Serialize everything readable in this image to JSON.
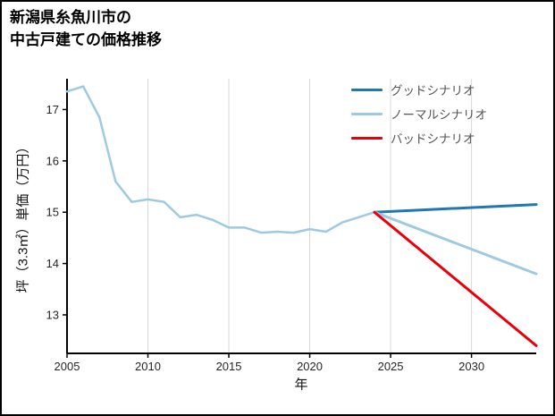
{
  "title": {
    "line1": "新潟県糸魚川市の",
    "line2": "中古戸建ての価格推移"
  },
  "chart_data": {
    "type": "line",
    "title": "新潟県糸魚川市の中古戸建ての価格推移",
    "xlabel": "年",
    "ylabel": "坪（3.3㎡）単価（万円）",
    "xlim": [
      2005,
      2034
    ],
    "ylim": [
      12.25,
      17.6
    ],
    "xticks": [
      2005,
      2010,
      2015,
      2020,
      2025,
      2030
    ],
    "yticks": [
      13,
      14,
      15,
      16,
      17
    ],
    "grid": "vertical-only",
    "grid_color": "#d9d9d9",
    "axis_color": "#000000",
    "tick_label_color": "#262626",
    "legend_position": "upper-right",
    "legend": [
      {
        "label": "グッドシナリオ",
        "color": "#1f77b4"
      },
      {
        "label": "ノーマルシナリオ",
        "color": "#9ecae1"
      },
      {
        "label": "バッドシナリオ",
        "color": "#e8000b"
      }
    ],
    "series": [
      {
        "name": "historical",
        "color": "#9ecae1",
        "width": 2.5,
        "x": [
          2005,
          2006,
          2007,
          2008,
          2009,
          2010,
          2011,
          2012,
          2013,
          2014,
          2015,
          2016,
          2017,
          2018,
          2019,
          2020,
          2021,
          2022,
          2023,
          2024
        ],
        "y": [
          17.35,
          17.45,
          16.85,
          15.6,
          15.2,
          15.25,
          15.2,
          14.9,
          14.95,
          14.85,
          14.7,
          14.7,
          14.6,
          14.62,
          14.6,
          14.67,
          14.62,
          14.8,
          14.9,
          15.0
        ]
      },
      {
        "name": "グッドシナリオ",
        "color": "#1f77b4",
        "width": 3,
        "x": [
          2024,
          2034
        ],
        "y": [
          15.0,
          15.15
        ]
      },
      {
        "name": "ノーマルシナリオ",
        "color": "#9ecae1",
        "width": 3,
        "x": [
          2024,
          2034
        ],
        "y": [
          15.0,
          13.8
        ]
      },
      {
        "name": "バッドシナリオ",
        "color": "#e8000b",
        "width": 3,
        "x": [
          2024,
          2034
        ],
        "y": [
          15.0,
          12.4
        ]
      }
    ]
  }
}
